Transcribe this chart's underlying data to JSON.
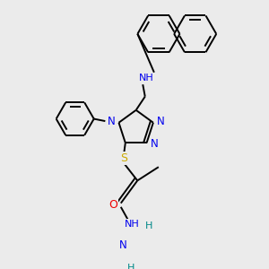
{
  "background_color": "#ebebeb",
  "atom_colors": {
    "N": "#0000ee",
    "O": "#ee0000",
    "S": "#ccaa00",
    "C": "#000000",
    "H": "#008888"
  },
  "bond_color": "#000000",
  "bond_width": 1.4,
  "figsize": [
    3.0,
    3.0
  ],
  "dpi": 100
}
